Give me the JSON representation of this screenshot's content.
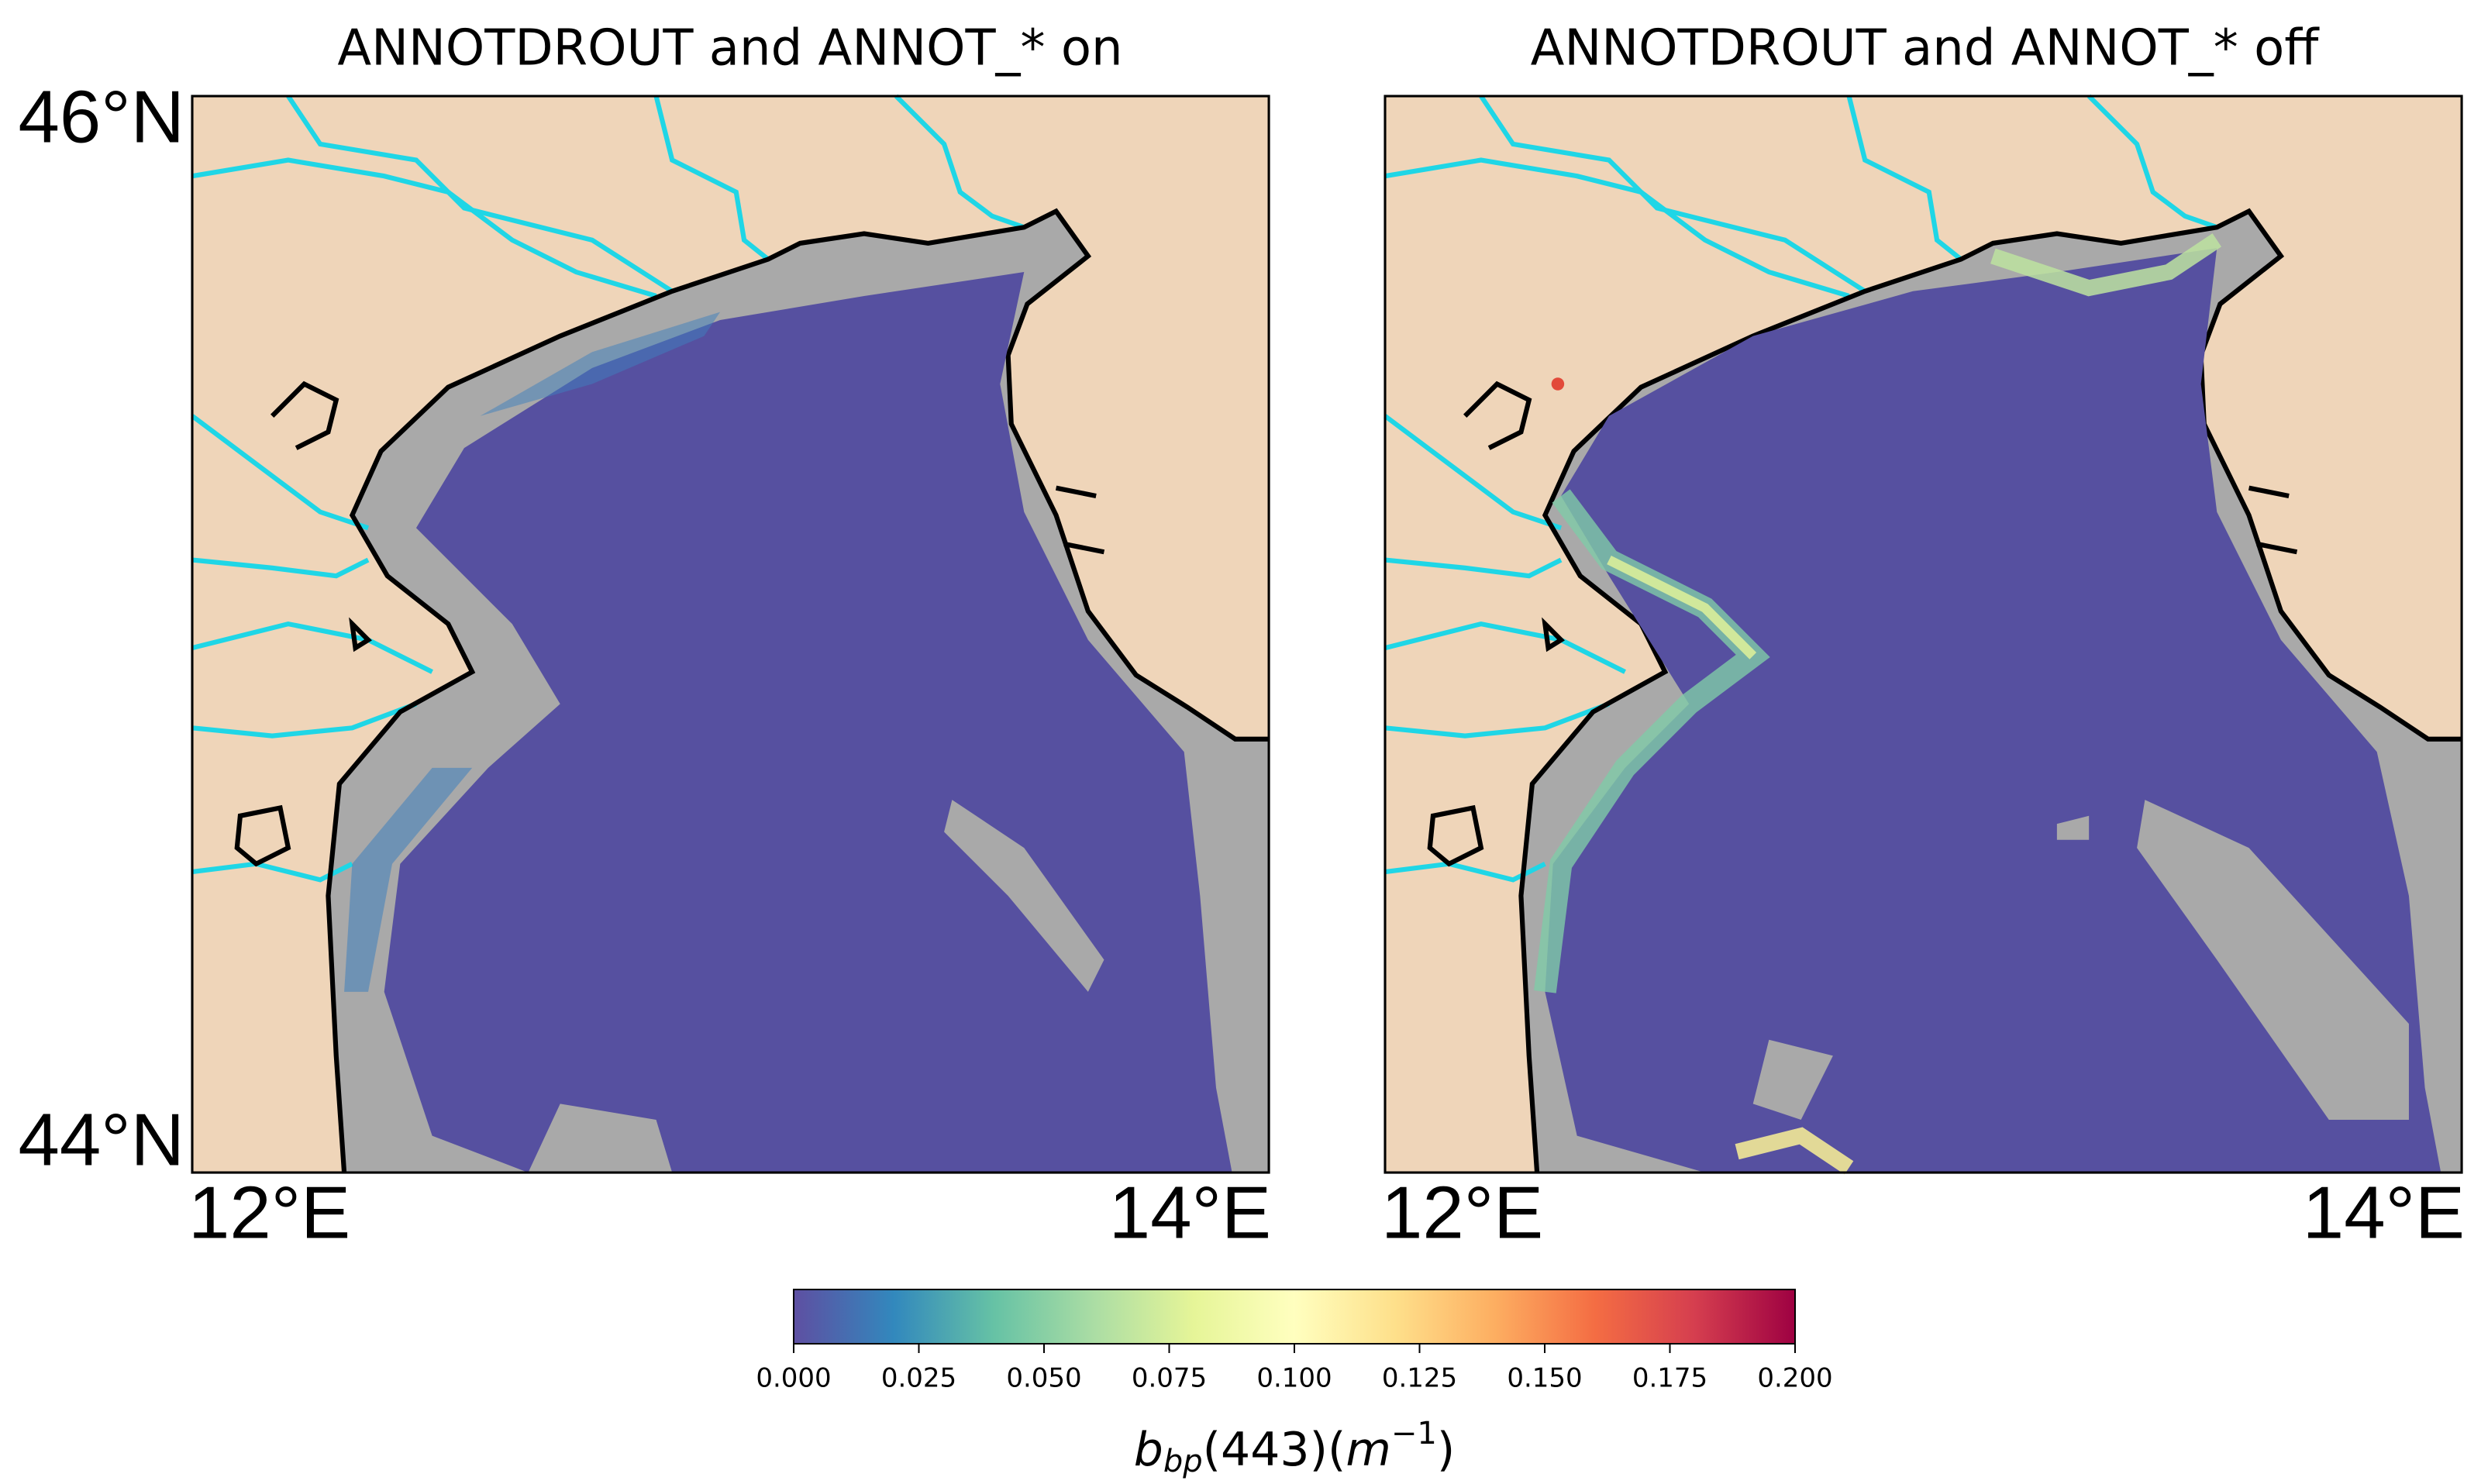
{
  "panels": [
    {
      "title": "ANNOTDROUT and ANNOT_* on",
      "lat_labels": [
        "46°N",
        "44°N"
      ],
      "lon_labels": [
        "12°E",
        "14°E"
      ]
    },
    {
      "title": "ANNOTDROUT and ANNOT_* off",
      "lon_labels": [
        "12°E",
        "14°E"
      ]
    }
  ],
  "colorbar": {
    "lim": [
      0,
      0.2
    ],
    "ticks": [
      {
        "value": 0,
        "label": "0.000"
      },
      {
        "value": 0.025,
        "label": "0.025"
      },
      {
        "value": 0.05,
        "label": "0.050"
      },
      {
        "value": 0.075,
        "label": "0.075"
      },
      {
        "value": 0.1,
        "label": "0.100"
      },
      {
        "value": 0.125,
        "label": "0.125"
      },
      {
        "value": 0.15,
        "label": "0.150"
      },
      {
        "value": 0.175,
        "label": "0.175"
      },
      {
        "value": 0.2,
        "label": "0.200"
      }
    ],
    "label": {
      "base": "b",
      "sub": "bp",
      "mid": "(443)(",
      "unit": "m",
      "sup": "−1",
      "end": ")"
    }
  }
}
